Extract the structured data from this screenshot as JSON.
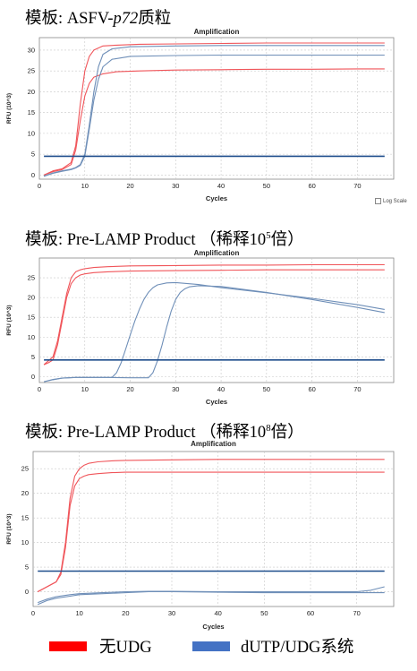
{
  "panels": [
    {
      "title_prefix": "模板: ASFV-",
      "title_italic": "p72",
      "title_suffix": "质粒",
      "title_sup": "",
      "title_end": ""
    },
    {
      "title_prefix": "模板: Pre-LAMP Product （稀释10",
      "title_italic": "",
      "title_suffix": "",
      "title_sup": "5",
      "title_end": "倍）"
    },
    {
      "title_prefix": "模板: Pre-LAMP Product （稀释10",
      "title_italic": "",
      "title_suffix": "",
      "title_sup": "8",
      "title_end": "倍）"
    }
  ],
  "log_scale_label": "Log Scale",
  "legend": [
    {
      "label": "无UDG",
      "color": "#ff0000"
    },
    {
      "label": "dUTP/UDG系统",
      "color": "#4472c4"
    }
  ],
  "colors": {
    "red_series": "#f0555a",
    "blue_series": "#6f8fb8",
    "threshold": "#1f4e8c"
  },
  "chart_data": [
    {
      "type": "line",
      "title": "Amplification",
      "xlabel": "Cycles",
      "ylabel": "RFU (10^3)",
      "xlim": [
        0,
        78
      ],
      "ylim": [
        -1,
        33
      ],
      "xticks": [
        0,
        10,
        20,
        30,
        40,
        50,
        60,
        70
      ],
      "yticks": [
        0,
        5,
        10,
        15,
        20,
        25,
        30
      ],
      "grid": true,
      "threshold": 4.5,
      "series": [
        {
          "group": "red",
          "x": [
            1,
            3,
            5,
            7,
            8,
            9,
            10,
            11,
            12,
            14,
            17,
            22,
            30,
            40,
            50,
            60,
            70,
            76
          ],
          "y": [
            0,
            1,
            1.5,
            3,
            7,
            17,
            25,
            28.5,
            30,
            31,
            31.2,
            31.4,
            31.5,
            31.6,
            31.7,
            31.7,
            31.7,
            31.7
          ]
        },
        {
          "group": "red",
          "x": [
            1,
            3,
            5,
            7,
            8,
            9,
            10,
            11,
            12,
            14,
            17,
            22,
            30,
            40,
            50,
            60,
            70,
            76
          ],
          "y": [
            0,
            0.8,
            1.3,
            2.5,
            6,
            13,
            19,
            22,
            23.5,
            24.3,
            24.8,
            25,
            25.2,
            25.3,
            25.4,
            25.4,
            25.5,
            25.5
          ]
        },
        {
          "group": "blue",
          "x": [
            1,
            3,
            5,
            7,
            8,
            9,
            10,
            11,
            12,
            13,
            14,
            16,
            20,
            30,
            40,
            50,
            60,
            70,
            76
          ],
          "y": [
            -0.3,
            0.5,
            1,
            1.4,
            1.8,
            2.5,
            5,
            12,
            20,
            26,
            29,
            30.3,
            30.8,
            31,
            31.1,
            31.1,
            31.1,
            31.1,
            31.1
          ]
        },
        {
          "group": "blue",
          "x": [
            1,
            3,
            5,
            7,
            8,
            9,
            10,
            11,
            12,
            13,
            14,
            16,
            20,
            30,
            40,
            50,
            60,
            70,
            76
          ],
          "y": [
            -0.3,
            0.4,
            0.9,
            1.3,
            1.7,
            2.3,
            4.5,
            11,
            18,
            23,
            26,
            27.8,
            28.5,
            28.7,
            28.8,
            28.8,
            28.8,
            28.8,
            28.8
          ]
        },
        {
          "group": "threshold",
          "x": [
            1,
            76
          ],
          "y": [
            4.5,
            4.5
          ]
        }
      ]
    },
    {
      "type": "line",
      "title": "Amplification",
      "xlabel": "Cycles",
      "ylabel": "RFU (10^3)",
      "xlim": [
        0,
        78
      ],
      "ylim": [
        -1.5,
        30
      ],
      "xticks": [
        0,
        10,
        20,
        30,
        40,
        50,
        60,
        70
      ],
      "yticks": [
        0,
        5,
        10,
        15,
        20,
        25
      ],
      "grid": true,
      "threshold": 4.2,
      "series": [
        {
          "group": "red",
          "x": [
            1,
            2,
            3,
            4,
            5,
            6,
            7,
            8,
            9,
            10,
            12,
            15,
            20,
            30,
            40,
            50,
            60,
            70,
            76
          ],
          "y": [
            3,
            4,
            5,
            9,
            15,
            21,
            25,
            26.5,
            27,
            27.3,
            27.6,
            27.8,
            28,
            28.1,
            28.2,
            28.2,
            28.3,
            28.3,
            28.3
          ]
        },
        {
          "group": "red",
          "x": [
            1,
            2,
            3,
            4,
            5,
            6,
            7,
            8,
            9,
            10,
            12,
            15,
            20,
            30,
            40,
            50,
            60,
            70,
            76
          ],
          "y": [
            3,
            3.5,
            4.2,
            8,
            14,
            20,
            23.5,
            25,
            25.7,
            26,
            26.3,
            26.5,
            26.7,
            26.8,
            26.9,
            27,
            27,
            27,
            27
          ]
        },
        {
          "group": "blue",
          "x": [
            1,
            3,
            5,
            8,
            10,
            14,
            16,
            17,
            18,
            19,
            20,
            21,
            22,
            23,
            24,
            25,
            26,
            28,
            30,
            35,
            40,
            50,
            60,
            70,
            76
          ],
          "y": [
            -1.3,
            -0.8,
            -0.4,
            -0.2,
            -0.2,
            -0.2,
            -0.2,
            1,
            3.5,
            7,
            10.5,
            14,
            17,
            19.5,
            21.3,
            22.5,
            23.2,
            23.7,
            23.8,
            23.3,
            22.5,
            21.2,
            19.8,
            18.2,
            17
          ]
        },
        {
          "group": "blue",
          "x": [
            1,
            3,
            5,
            8,
            10,
            15,
            20,
            24,
            25,
            26,
            27,
            28,
            29,
            30,
            31,
            32,
            33,
            35,
            40,
            50,
            60,
            70,
            76
          ],
          "y": [
            -1.3,
            -0.7,
            -0.4,
            -0.2,
            -0.2,
            -0.2,
            -0.3,
            -0.3,
            1,
            4,
            8,
            12.5,
            16.5,
            19.5,
            21.3,
            22.2,
            22.7,
            23,
            22.8,
            21.3,
            19.5,
            17.5,
            16.2
          ]
        },
        {
          "group": "threshold",
          "x": [
            1,
            76
          ],
          "y": [
            4.2,
            4.2
          ]
        }
      ]
    },
    {
      "type": "line",
      "title": "Amplification",
      "xlabel": "Cycles",
      "ylabel": "RFU (10^3)",
      "xlim": [
        0,
        78
      ],
      "ylim": [
        -3,
        28.5
      ],
      "xticks": [
        0,
        10,
        20,
        30,
        40,
        50,
        60,
        70
      ],
      "yticks": [
        0,
        5,
        10,
        15,
        20,
        25
      ],
      "grid": true,
      "threshold": 4.2,
      "series": [
        {
          "group": "red",
          "x": [
            1,
            3,
            5,
            6,
            7,
            8,
            9,
            10,
            11,
            12,
            14,
            17,
            20,
            30,
            40,
            50,
            60,
            70,
            76
          ],
          "y": [
            0,
            1,
            2,
            4,
            10,
            19,
            23.5,
            25,
            25.7,
            26.1,
            26.4,
            26.6,
            26.7,
            26.8,
            26.9,
            26.9,
            26.9,
            26.9,
            26.9
          ]
        },
        {
          "group": "red",
          "x": [
            1,
            3,
            5,
            6,
            7,
            8,
            9,
            10,
            11,
            12,
            14,
            17,
            20,
            30,
            40,
            50,
            60,
            70,
            76
          ],
          "y": [
            0,
            1,
            2,
            3.5,
            9,
            17.5,
            21.5,
            23,
            23.5,
            23.8,
            24,
            24.2,
            24.3,
            24.3,
            24.3,
            24.3,
            24.3,
            24.3,
            24.3
          ]
        },
        {
          "group": "blue",
          "x": [
            1,
            3,
            5,
            8,
            10,
            15,
            20,
            25,
            30,
            40,
            50,
            60,
            70,
            73,
            76
          ],
          "y": [
            -2.2,
            -1.5,
            -1,
            -0.6,
            -0.4,
            -0.2,
            0,
            0.1,
            0.1,
            0,
            0,
            0,
            0,
            0.3,
            1
          ]
        },
        {
          "group": "blue",
          "x": [
            1,
            3,
            5,
            8,
            10,
            15,
            20,
            25,
            30,
            40,
            50,
            60,
            70,
            76
          ],
          "y": [
            -2.6,
            -1.8,
            -1.3,
            -0.9,
            -0.6,
            -0.4,
            -0.2,
            0,
            0,
            -0.1,
            -0.2,
            -0.2,
            -0.2,
            -0.2
          ]
        },
        {
          "group": "threshold",
          "x": [
            1,
            76
          ],
          "y": [
            4.2,
            4.2
          ]
        }
      ]
    }
  ]
}
